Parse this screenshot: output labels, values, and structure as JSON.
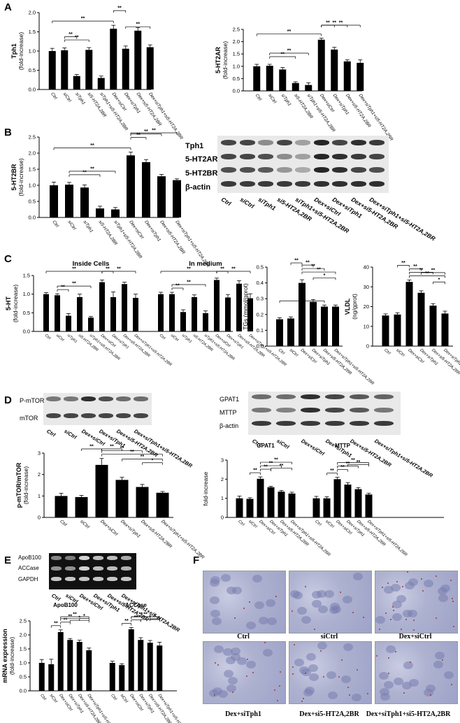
{
  "panels": {
    "A": "A",
    "B": "B",
    "C": "C",
    "D": "D",
    "E": "E",
    "F": "F"
  },
  "chart_data": [
    {
      "id": "A1",
      "type": "bar",
      "ylabel": "Tph1",
      "ylabel2": "(fold-increase)",
      "ylim": [
        0,
        2.0
      ],
      "yticks": [
        "0.0",
        "0.5",
        "1.0",
        "1.5",
        "2.0"
      ],
      "categories": [
        "Ctrl",
        "siCtrl",
        "siTph1",
        "si5-HT2A,2BR",
        "siTph1+si5-HT2A,2BR",
        "Dex+siCtrl",
        "Dex+siTph1",
        "Dex+si5-HT2A,2BR",
        "Dex+siTph1+si5-HT2A,2BR"
      ],
      "values": [
        1.0,
        1.02,
        0.35,
        1.03,
        0.3,
        1.58,
        1.06,
        1.53,
        1.1
      ],
      "errors": [
        0.07,
        0.06,
        0.04,
        0.06,
        0.05,
        0.09,
        0.07,
        0.08,
        0.06
      ],
      "sig": [
        [
          0,
          5,
          "**"
        ],
        [
          1,
          3,
          "**"
        ],
        [
          1,
          2,
          "**"
        ],
        [
          5,
          6,
          "**"
        ],
        [
          6,
          8,
          "**"
        ]
      ]
    },
    {
      "id": "A2",
      "type": "bar",
      "ylabel": "5-HT2AR",
      "ylabel2": "(fold-increase)",
      "ylim": [
        0,
        2.5
      ],
      "yticks": [
        "0.0",
        "0.5",
        "1.0",
        "1.5",
        "2.0",
        "2.5"
      ],
      "categories": [
        "Ctrl",
        "siCtrl",
        "siTph1",
        "si5-HT2A,2BR",
        "siTph1+si5-HT2A,2BR",
        "Dex+siCtrl",
        "Dex+siTph1",
        "Dex+si5-HT2A,2BR",
        "Dex+siTph1+si5-HT2A,2BR"
      ],
      "values": [
        1.0,
        1.02,
        0.87,
        0.32,
        0.24,
        2.08,
        1.68,
        1.2,
        1.14
      ],
      "errors": [
        0.08,
        0.06,
        0.08,
        0.05,
        0.09,
        0.06,
        0.09,
        0.06,
        0.12
      ],
      "sig": [
        [
          0,
          5,
          "**"
        ],
        [
          1,
          3,
          "**"
        ],
        [
          1,
          4,
          "**"
        ],
        [
          5,
          6,
          "**"
        ],
        [
          5,
          7,
          "**"
        ],
        [
          5,
          8,
          "**"
        ]
      ]
    },
    {
      "id": "B1",
      "type": "bar",
      "ylabel": "5-HT2BR",
      "ylabel2": "(fold-increase)",
      "ylim": [
        0,
        2.5
      ],
      "yticks": [
        "0.0",
        "0.5",
        "1.0",
        "1.5",
        "2.0",
        "2.5"
      ],
      "categories": [
        "Ctrl",
        "siCtrl",
        "siTph1",
        "si5-HT2A,2BR",
        "siTph1+si5-HT2A,2BR",
        "Dex+siCtrl",
        "Dex+siTph1",
        "Dex+si5-HT2A,2BR",
        "Dex+siTph1+si5-HT2A,2BR"
      ],
      "values": [
        1.0,
        1.02,
        0.93,
        0.28,
        0.25,
        1.93,
        1.72,
        1.28,
        1.16
      ],
      "errors": [
        0.1,
        0.07,
        0.08,
        0.07,
        0.06,
        0.1,
        0.08,
        0.06,
        0.04
      ],
      "sig": [
        [
          0,
          5,
          "**"
        ],
        [
          1,
          3,
          "**"
        ],
        [
          1,
          4,
          "**"
        ],
        [
          5,
          6,
          "**"
        ],
        [
          5,
          7,
          "**"
        ],
        [
          5,
          8,
          "**"
        ]
      ]
    },
    {
      "id": "C1",
      "type": "bar",
      "ylabel": "5-HT",
      "ylabel2": "(fold-increase)",
      "ylim": [
        0,
        1.5
      ],
      "yticks": [
        "0.0",
        "0.5",
        "1.0",
        "1.5"
      ],
      "group_titles": [
        "Inside Cells",
        "In medium"
      ],
      "categories": [
        "Ctrl",
        "siCtrl",
        "siTph1",
        "si5-HT2A,2BR",
        "siTph1+si5-HT2A,2BR",
        "Dex+siCtrl",
        "Dex+siTph1",
        "Dex+si5-HT2A,2BR",
        "Dex+siTph1+si5-HT2A,2BR"
      ],
      "series": [
        {
          "name": "Inside Cells",
          "values": [
            1.0,
            0.97,
            0.42,
            0.92,
            0.37,
            1.32,
            0.92,
            1.27,
            0.9
          ],
          "errors": [
            0.04,
            0.04,
            0.06,
            0.08,
            0.03,
            0.06,
            0.14,
            0.05,
            0.1
          ]
        },
        {
          "name": "In medium",
          "values": [
            1.0,
            1.0,
            0.52,
            0.92,
            0.49,
            1.38,
            0.91,
            1.28,
            0.89
          ],
          "errors": [
            0.05,
            0.05,
            0.06,
            0.06,
            0.06,
            0.05,
            0.08,
            0.08,
            0.12
          ]
        }
      ],
      "sig": [
        [
          1,
          2,
          "**"
        ],
        [
          1,
          4,
          "**"
        ],
        [
          0,
          5,
          "**"
        ],
        [
          5,
          6,
          "**"
        ],
        [
          5,
          8,
          "**"
        ]
      ]
    },
    {
      "id": "C2",
      "type": "bar",
      "ylabel": "TGs (mmol/gprot)",
      "ylim": [
        0,
        0.5
      ],
      "yticks": [
        "0.0",
        "0.1",
        "0.2",
        "0.3",
        "0.4",
        "0.5"
      ],
      "categories": [
        "Ctrl",
        "siCtrl",
        "Dex+siCtrl",
        "Dex+siTph1",
        "Dex+si5-HT2A,2BR",
        "Dex+siTph1+si5-HT2A,2BR"
      ],
      "values": [
        0.17,
        0.175,
        0.4,
        0.28,
        0.25,
        0.25
      ],
      "errors": [
        0.01,
        0.01,
        0.02,
        0.015,
        0.01,
        0.01
      ],
      "sig": [
        [
          0,
          4,
          "**"
        ],
        [
          2,
          5,
          "**"
        ],
        [
          2,
          4,
          "**"
        ],
        [
          2,
          3,
          "**"
        ],
        [
          1,
          2,
          "**"
        ],
        [
          3,
          5,
          "*"
        ]
      ]
    },
    {
      "id": "C3",
      "type": "bar",
      "ylabel": "VLDL",
      "ylabel2": "(ng/gprot)",
      "ylim": [
        0,
        40
      ],
      "yticks": [
        "0",
        "10",
        "20",
        "30",
        "40"
      ],
      "categories": [
        "Ctrl",
        "siCtrl",
        "Dex+siCtrl",
        "Dex+siTph1",
        "Dex+si5-HT2A,2BR",
        "Dex+siTph1+si5-HT2A,2BR"
      ],
      "values": [
        15.5,
        16.0,
        32.5,
        27.0,
        20.5,
        16.5
      ],
      "errors": [
        0.8,
        0.9,
        1.0,
        1.0,
        1.0,
        1.2
      ],
      "sig": [
        [
          2,
          5,
          "**"
        ],
        [
          2,
          4,
          "**"
        ],
        [
          2,
          3,
          "**"
        ],
        [
          1,
          2,
          "**"
        ],
        [
          3,
          5,
          "**"
        ],
        [
          4,
          5,
          "*"
        ]
      ]
    },
    {
      "id": "D1",
      "type": "bar",
      "ylabel": "p-mTOR/mTOR",
      "ylabel2": "(fold-increase)",
      "ylim": [
        0,
        3
      ],
      "yticks": [
        "0",
        "1",
        "2",
        "3"
      ],
      "categories": [
        "Ctrl",
        "siCtrl",
        "Dex+siCtrl",
        "Dex+siTph1",
        "Dex+si5-HT2A,2BR",
        "Dex+siTph1+si5-HT2A,2BR"
      ],
      "values": [
        1.0,
        0.95,
        2.45,
        1.75,
        1.42,
        1.15
      ],
      "errors": [
        0.13,
        0.08,
        0.3,
        0.12,
        0.12,
        0.06
      ],
      "sig": [
        [
          2,
          5,
          "**"
        ],
        [
          2,
          4,
          "**"
        ],
        [
          2,
          3,
          "**"
        ],
        [
          1,
          2,
          "**"
        ],
        [
          3,
          5,
          "**"
        ],
        [
          4,
          5,
          "*"
        ]
      ]
    },
    {
      "id": "D2",
      "type": "bar",
      "ylabel": "fold-increase",
      "ylim": [
        0,
        3
      ],
      "yticks": [
        "0",
        "1",
        "2",
        "3"
      ],
      "group_titles": [
        "GPAT1",
        "MTTP"
      ],
      "categories": [
        "Ctrl",
        "siCtrl",
        "Dex+siCtrl",
        "Dex+siTph1",
        "Dex+si5-HT2A,2BR",
        "Dex+siTph1+si5-HT2A,2BR"
      ],
      "series": [
        {
          "name": "GPAT1",
          "values": [
            1.0,
            0.97,
            2.02,
            1.58,
            1.35,
            1.25
          ],
          "errors": [
            0.12,
            0.06,
            0.1,
            0.05,
            0.06,
            0.07
          ]
        },
        {
          "name": "MTTP",
          "values": [
            1.0,
            1.0,
            2.0,
            1.72,
            1.48,
            1.2
          ],
          "errors": [
            0.1,
            0.08,
            0.1,
            0.1,
            0.08,
            0.07
          ]
        }
      ],
      "sig": [
        [
          1,
          2,
          "**"
        ],
        [
          2,
          3,
          "**"
        ],
        [
          2,
          4,
          "**"
        ],
        [
          2,
          5,
          "**"
        ],
        [
          3,
          5,
          "**"
        ]
      ]
    },
    {
      "id": "E1",
      "type": "bar",
      "ylabel": "mRNA expression",
      "ylabel2": "(fold-increase)",
      "ylim": [
        0,
        2.5
      ],
      "yticks": [
        "0.0",
        "0.5",
        "1.0",
        "1.5",
        "2.0",
        "2.5"
      ],
      "group_titles": [
        "ApoB100",
        "ACCase"
      ],
      "categories": [
        "Ctrl",
        "siCtrl",
        "Dex+siCtrl",
        "Dex+siTph1",
        "Dex+si5-HT2A,2BR",
        "Dex+siTph1+si5-HT2A,2BR"
      ],
      "series": [
        {
          "name": "ApoB100",
          "values": [
            1.0,
            0.95,
            2.1,
            1.82,
            1.75,
            1.45
          ],
          "errors": [
            0.12,
            0.18,
            0.08,
            0.05,
            0.06,
            0.08
          ]
        },
        {
          "name": "ACCase",
          "values": [
            1.0,
            0.92,
            2.2,
            1.82,
            1.72,
            1.62
          ],
          "errors": [
            0.06,
            0.05,
            0.06,
            0.08,
            0.08,
            0.12
          ]
        }
      ],
      "sig": [
        [
          1,
          2,
          "**"
        ],
        [
          2,
          3,
          "**"
        ],
        [
          2,
          4,
          "**"
        ],
        [
          2,
          5,
          "**"
        ],
        [
          3,
          5,
          "*"
        ],
        [
          4,
          5,
          "*"
        ]
      ]
    }
  ],
  "blot_B": {
    "rows": [
      "Tph1",
      "5-HT2AR",
      "5-HT2BR",
      "β-actin"
    ],
    "lanes": [
      "Ctrl",
      "siCtrl",
      "siTph1",
      "si5-HT2A,2BR",
      "siTph1+si5-HT2A,2BR",
      "Dex+siCtrl",
      "Dex+siTph1",
      "Dex+si5-HT2A,2BR",
      "Dex+siTph1+si5-HT2A,2BR"
    ]
  },
  "blot_D1": {
    "rows": [
      "P-mTOR",
      "mTOR"
    ],
    "lanes": [
      "Ctrl",
      "siCtrl",
      "Dex+siCtrl",
      "Dex+siTph1",
      "Dex+si5-HT2A,2BR",
      "Dex+siTph1+si5-HT2A,2BR"
    ]
  },
  "blot_D2": {
    "rows": [
      "GPAT1",
      "MTTP",
      "β-actin"
    ],
    "lanes": [
      "Ctrl",
      "siCtrl",
      "Dex+siCtrl",
      "Dex+siTph1",
      "Dex+si5-HT2A,2BR",
      "Dex+siTph1+si5-HT2A,2BR"
    ]
  },
  "gel_E": {
    "rows": [
      "ApoB100",
      "ACCase",
      "GAPDH"
    ],
    "lanes": [
      "Ctrl",
      "siCtrl",
      "Dex+siCtrl",
      "Dex+siTph1",
      "Dex+si5-HT2A,2BR",
      "Dex+siTph1+si5-HT2A,2BR"
    ]
  },
  "micrographs": [
    "Ctrl",
    "siCtrl",
    "Dex+siCtrl",
    "Dex+siTph1",
    "Dex+si5-HT2A,2BR",
    "Dex+siTph1+si5-HT2A,2BR"
  ]
}
